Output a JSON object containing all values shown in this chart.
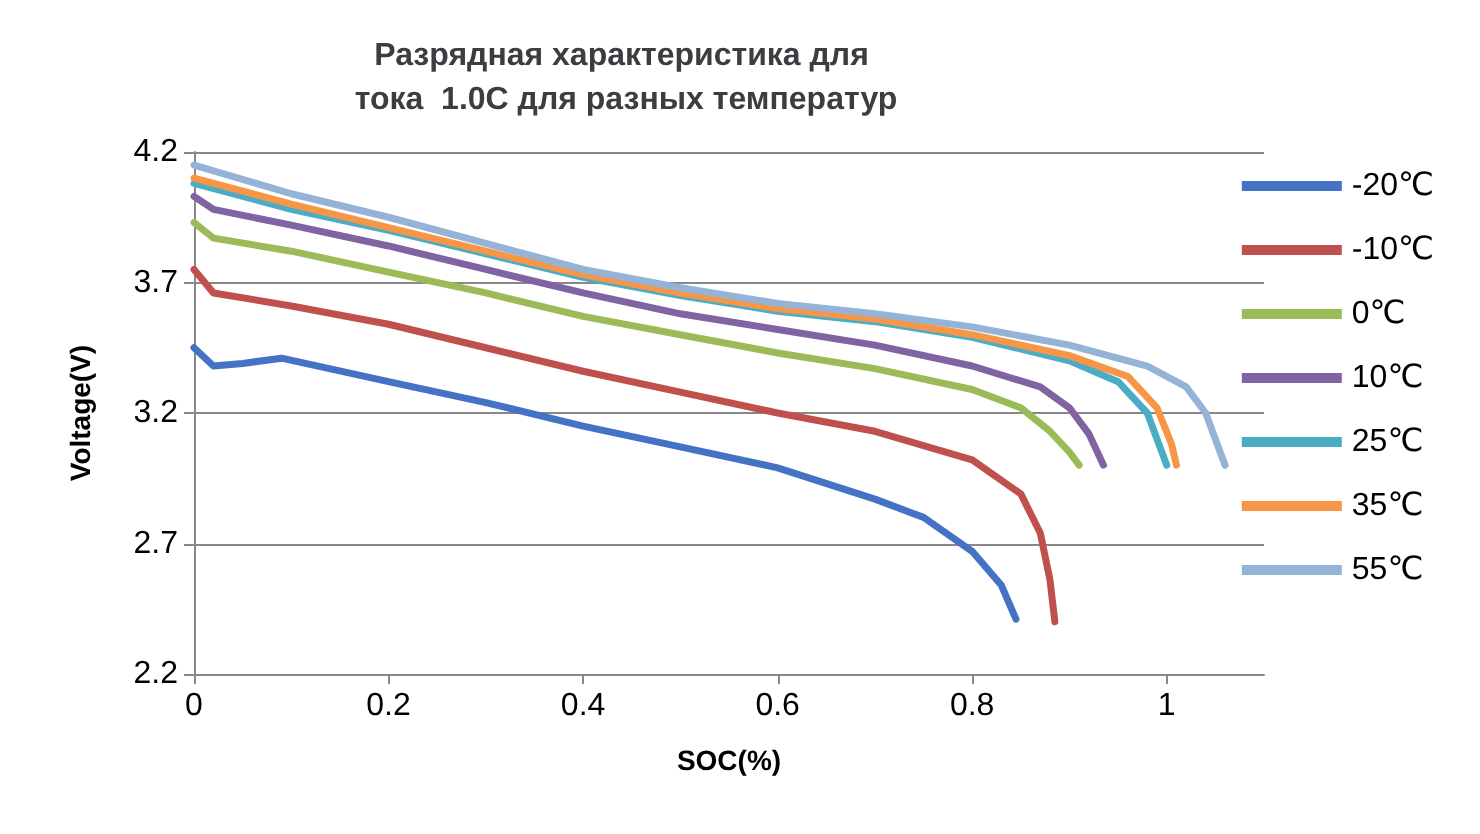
{
  "chart_data": {
    "type": "line",
    "title": "Разрядная характеристика для тока  1.0C для разных температур",
    "xlabel": "SOC(%)",
    "ylabel": "Voltage(V)",
    "xlim": [
      0,
      1.1
    ],
    "xticks": [
      0,
      0.2,
      0.4,
      0.6,
      0.8,
      1
    ],
    "ylim": [
      2.2,
      4.2
    ],
    "yticks": [
      2.2,
      2.7,
      3.2,
      3.7,
      4.2
    ],
    "grid": "y",
    "legend": "right",
    "marker": "none",
    "line_style": "solid",
    "series": [
      {
        "name": "-20℃",
        "color": "#4472c4",
        "x": [
          0,
          0.02,
          0.05,
          0.09,
          0.2,
          0.3,
          0.4,
          0.5,
          0.6,
          0.7,
          0.75,
          0.8,
          0.83,
          0.845
        ],
        "values": [
          3.45,
          3.38,
          3.39,
          3.41,
          3.32,
          3.24,
          3.15,
          3.07,
          2.99,
          2.87,
          2.8,
          2.67,
          2.54,
          2.41
        ]
      },
      {
        "name": "-10℃",
        "color": "#c0504d",
        "x": [
          0,
          0.02,
          0.1,
          0.2,
          0.3,
          0.4,
          0.5,
          0.6,
          0.7,
          0.8,
          0.85,
          0.87,
          0.88,
          0.885
        ],
        "values": [
          3.75,
          3.66,
          3.61,
          3.54,
          3.45,
          3.36,
          3.28,
          3.2,
          3.13,
          3.02,
          2.89,
          2.74,
          2.56,
          2.4
        ]
      },
      {
        "name": "0℃",
        "color": "#9bbb59",
        "x": [
          0,
          0.02,
          0.1,
          0.2,
          0.3,
          0.4,
          0.5,
          0.6,
          0.7,
          0.8,
          0.85,
          0.88,
          0.9,
          0.91
        ],
        "values": [
          3.93,
          3.87,
          3.82,
          3.74,
          3.66,
          3.57,
          3.5,
          3.43,
          3.37,
          3.29,
          3.22,
          3.13,
          3.05,
          3.0
        ]
      },
      {
        "name": "10℃",
        "color": "#8064a2",
        "x": [
          0,
          0.02,
          0.1,
          0.2,
          0.3,
          0.4,
          0.5,
          0.6,
          0.7,
          0.8,
          0.87,
          0.9,
          0.92,
          0.935
        ],
        "values": [
          4.03,
          3.98,
          3.92,
          3.84,
          3.75,
          3.66,
          3.58,
          3.52,
          3.46,
          3.38,
          3.3,
          3.22,
          3.12,
          3.0
        ]
      },
      {
        "name": "25℃",
        "color": "#4bacc6",
        "x": [
          0,
          0.1,
          0.2,
          0.3,
          0.4,
          0.5,
          0.6,
          0.7,
          0.8,
          0.9,
          0.95,
          0.98,
          0.995,
          1.0
        ],
        "values": [
          4.08,
          3.98,
          3.9,
          3.81,
          3.72,
          3.65,
          3.59,
          3.55,
          3.49,
          3.4,
          3.32,
          3.2,
          3.05,
          3.0
        ]
      },
      {
        "name": "35℃",
        "color": "#f79646",
        "x": [
          0,
          0.1,
          0.2,
          0.3,
          0.4,
          0.5,
          0.6,
          0.7,
          0.8,
          0.9,
          0.96,
          0.99,
          1.005,
          1.01
        ],
        "values": [
          4.1,
          4.0,
          3.91,
          3.82,
          3.73,
          3.66,
          3.6,
          3.56,
          3.5,
          3.42,
          3.34,
          3.22,
          3.08,
          3.0
        ]
      },
      {
        "name": "55℃",
        "color": "#95b3d7",
        "x": [
          0,
          0.1,
          0.2,
          0.3,
          0.4,
          0.5,
          0.6,
          0.7,
          0.8,
          0.9,
          0.98,
          1.02,
          1.04,
          1.05,
          1.06
        ],
        "values": [
          4.15,
          4.04,
          3.95,
          3.85,
          3.75,
          3.68,
          3.62,
          3.58,
          3.53,
          3.46,
          3.38,
          3.3,
          3.2,
          3.1,
          3.0
        ]
      }
    ]
  }
}
